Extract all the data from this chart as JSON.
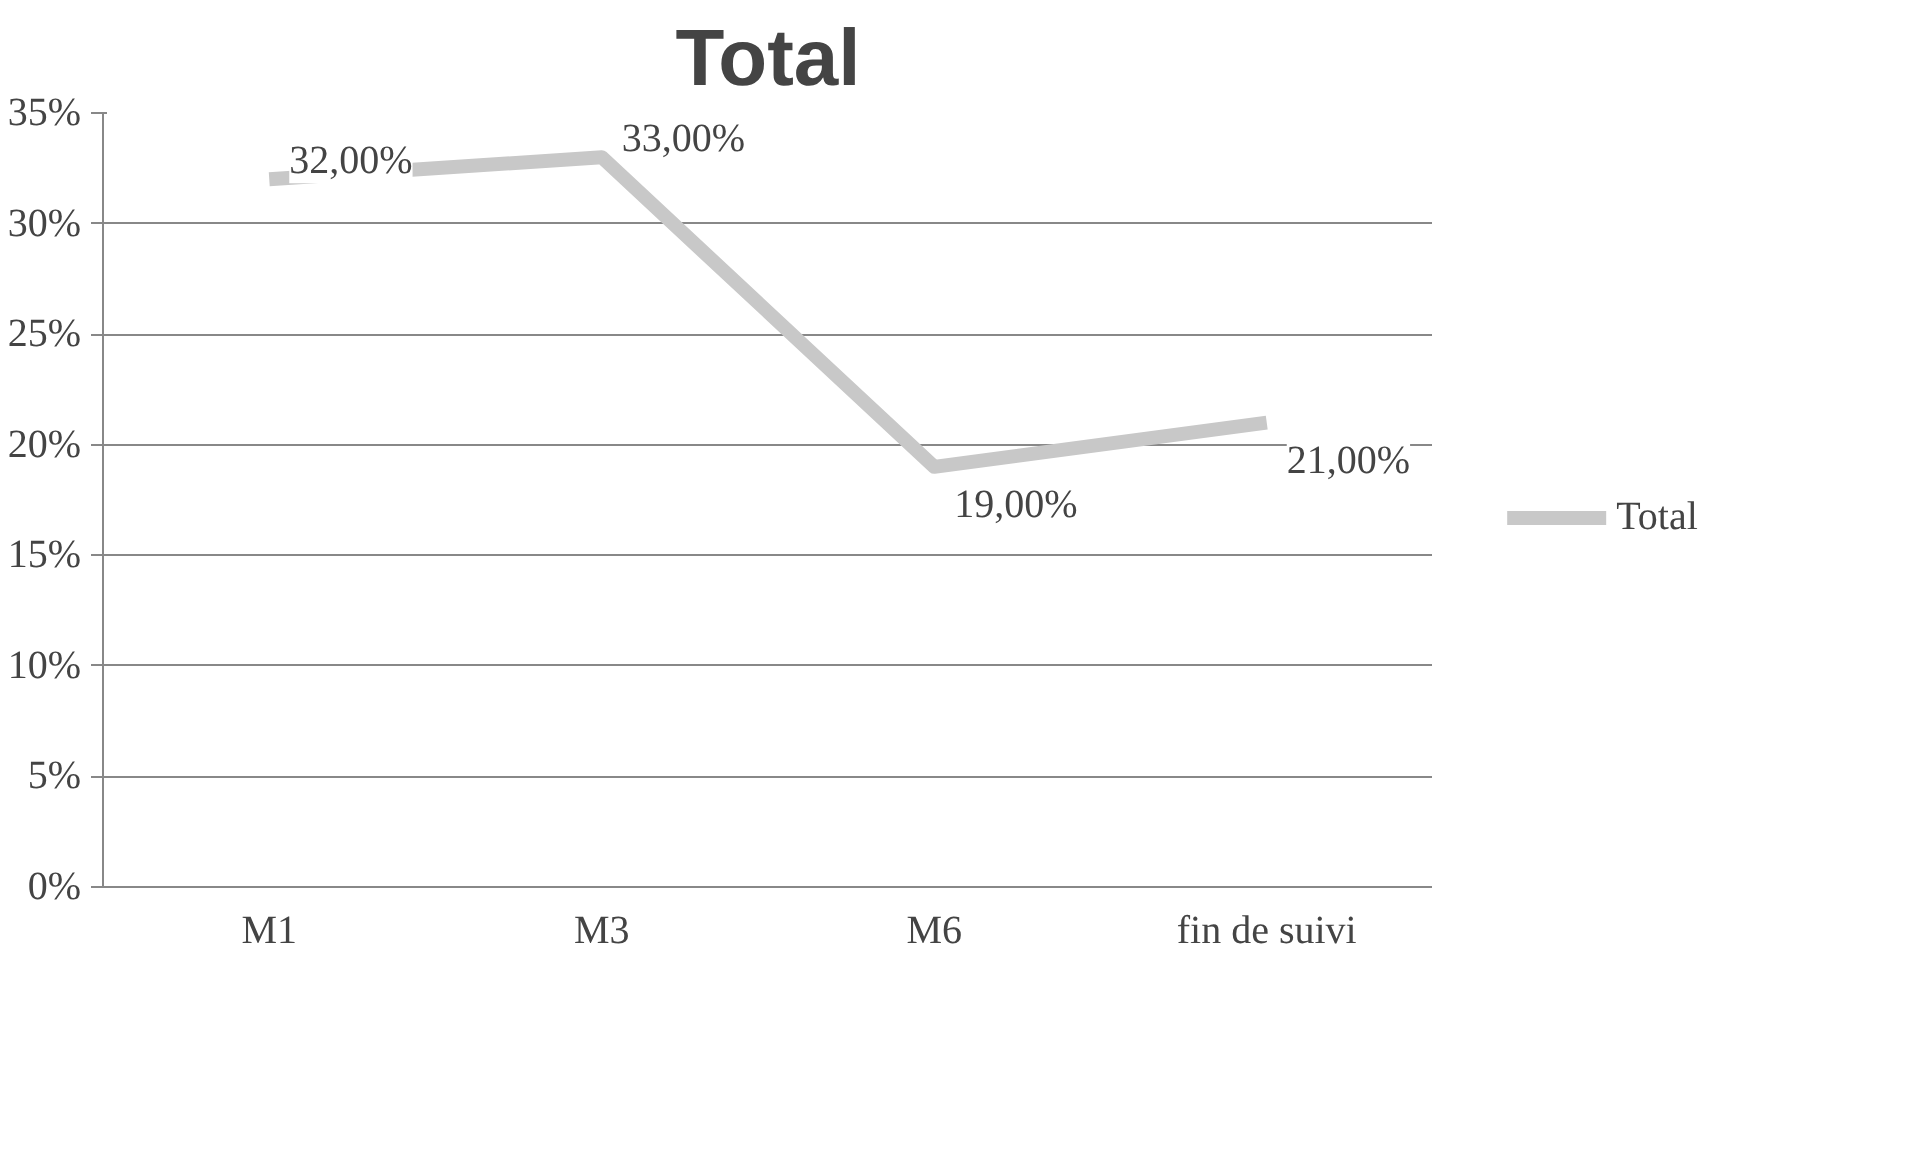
{
  "chart_data": {
    "type": "line",
    "title": "Total",
    "categories": [
      "M1",
      "M3",
      "M6",
      "fin de suivi"
    ],
    "series": [
      {
        "name": "Total",
        "color": "#c8c8c8",
        "values": [
          32,
          33,
          19,
          21
        ],
        "value_labels": [
          "32,00%",
          "33,00%",
          "19,00%",
          "21,00%"
        ]
      }
    ],
    "ylim": [
      0,
      35
    ],
    "yticks": [
      {
        "value": 0,
        "label": "0%"
      },
      {
        "value": 5,
        "label": "5%"
      },
      {
        "value": 10,
        "label": "10%"
      },
      {
        "value": 15,
        "label": "15%"
      },
      {
        "value": 20,
        "label": "20%"
      },
      {
        "value": 25,
        "label": "25%"
      },
      {
        "value": 30,
        "label": "30%"
      },
      {
        "value": 35,
        "label": "35%"
      }
    ],
    "grid": "y",
    "legend": "right",
    "marker": "none",
    "line_style": "solid"
  }
}
